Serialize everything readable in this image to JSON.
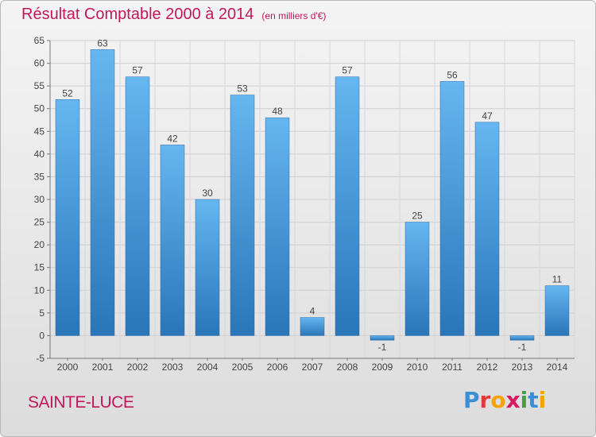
{
  "chart_data": {
    "type": "bar",
    "title": "Résultat Comptable 2000 à 2014",
    "subtitle": "(en milliers d'€)",
    "categories": [
      "2000",
      "2001",
      "2002",
      "2003",
      "2004",
      "2005",
      "2006",
      "2007",
      "2008",
      "2009",
      "2010",
      "2011",
      "2012",
      "2013",
      "2014"
    ],
    "values": [
      52,
      63,
      57,
      42,
      30,
      53,
      48,
      4,
      57,
      -1,
      25,
      56,
      47,
      -1,
      11
    ],
    "data_labels": [
      "52",
      "63",
      "57",
      "42",
      "30",
      "53",
      "48",
      "4",
      "57",
      "-1",
      "25",
      "56",
      "47",
      "-1",
      "11"
    ],
    "xlabel": "",
    "ylabel": "",
    "ylim": [
      -5,
      65
    ],
    "yticks": [
      -5,
      0,
      5,
      10,
      15,
      20,
      25,
      30,
      35,
      40,
      45,
      50,
      55,
      60,
      65
    ],
    "grid": true,
    "bar_color": "#3d95d8"
  },
  "place_name": "SAINTE-LUCE",
  "logo": {
    "text": "Proxiti",
    "letters": [
      {
        "ch": "P",
        "color": "#3a8fd6"
      },
      {
        "ch": "r",
        "color": "#e53935"
      },
      {
        "ch": "o",
        "color": "#f4a300"
      },
      {
        "ch": "x",
        "color": "#d81b60"
      },
      {
        "ch": "i",
        "color": "#43a047"
      },
      {
        "ch": "t",
        "color": "#3a8fd6"
      },
      {
        "ch": "i",
        "color": "#f4a300"
      }
    ]
  },
  "colors": {
    "title": "#c2185b",
    "bar_top": "#66b6ef",
    "bar_bottom": "#2a75b8"
  }
}
